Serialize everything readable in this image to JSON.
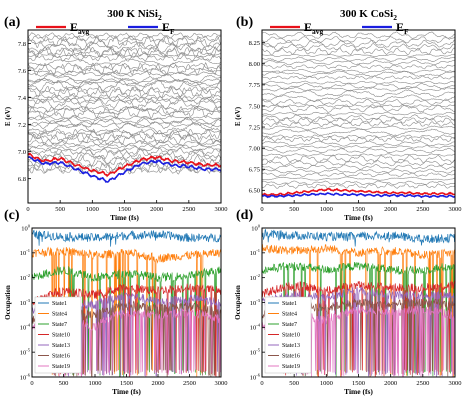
{
  "chart_data": [
    {
      "panel": "a",
      "type": "line",
      "title": "300 K NiSi",
      "title_sub": "2",
      "legend": [
        {
          "label": "E",
          "sub": "avg",
          "color": "#e8111a"
        },
        {
          "label": "E",
          "sub": "F",
          "color": "#1a1ee0"
        }
      ],
      "xlabel": "Time (fs)",
      "ylabel": "E (eV)",
      "xlim": [
        0,
        3000
      ],
      "ylim": [
        6.62,
        7.9
      ],
      "xticks": [
        0,
        500,
        1000,
        1500,
        2000,
        2500,
        3000
      ],
      "yticks": [
        6.8,
        7.0,
        7.2,
        7.4,
        7.6,
        7.8
      ],
      "ytick_labels": [
        "6.8",
        "7.0",
        "7.2",
        "7.4",
        "7.6",
        "7.8"
      ],
      "gray_states": {
        "count": 46,
        "low": 6.86,
        "high": 7.86,
        "color": "#8c8c8c"
      },
      "series": [
        {
          "name": "Eavg",
          "color": "#e8111a",
          "x": [
            0,
            250,
            500,
            750,
            1000,
            1250,
            1500,
            1750,
            2000,
            2250,
            2500,
            2750,
            3000
          ],
          "y": [
            6.98,
            6.93,
            6.95,
            6.9,
            6.86,
            6.83,
            6.89,
            6.94,
            6.96,
            6.93,
            6.92,
            6.9,
            6.9
          ]
        },
        {
          "name": "EF",
          "color": "#1a1ee0",
          "x": [
            0,
            250,
            500,
            750,
            1000,
            1250,
            1500,
            1750,
            2000,
            2250,
            2500,
            2750,
            3000
          ],
          "y": [
            6.96,
            6.91,
            6.92,
            6.87,
            6.82,
            6.78,
            6.85,
            6.91,
            6.93,
            6.9,
            6.89,
            6.87,
            6.87
          ]
        }
      ]
    },
    {
      "panel": "b",
      "type": "line",
      "title": "300 K CoSi",
      "title_sub": "2",
      "legend": [
        {
          "label": "E",
          "sub": "avg",
          "color": "#e8111a"
        },
        {
          "label": "E",
          "sub": "F",
          "color": "#1a1ee0"
        }
      ],
      "xlabel": "Time (fs)",
      "ylabel": "E (eV)",
      "xlim": [
        0,
        3000
      ],
      "ylim": [
        6.35,
        8.4
      ],
      "xticks": [
        0,
        500,
        1000,
        1500,
        2000,
        2500,
        3000
      ],
      "yticks": [
        6.5,
        6.75,
        7.0,
        7.25,
        7.5,
        7.75,
        8.0,
        8.25
      ],
      "ytick_labels": [
        "6.50",
        "6.75",
        "7.00",
        "7.25",
        "7.50",
        "7.75",
        "8.00",
        "8.25"
      ],
      "gray_states": {
        "count": 40,
        "low": 6.55,
        "high": 8.33,
        "color": "#8c8c8c"
      },
      "series": [
        {
          "name": "Eavg",
          "color": "#e8111a",
          "x": [
            0,
            250,
            500,
            750,
            1000,
            1250,
            1500,
            1750,
            2000,
            2250,
            2500,
            2750,
            3000
          ],
          "y": [
            6.45,
            6.45,
            6.47,
            6.49,
            6.51,
            6.5,
            6.49,
            6.48,
            6.47,
            6.47,
            6.46,
            6.46,
            6.46
          ]
        },
        {
          "name": "EF",
          "color": "#1a1ee0",
          "x": [
            0,
            250,
            500,
            750,
            1000,
            1250,
            1500,
            1750,
            2000,
            2250,
            2500,
            2750,
            3000
          ],
          "y": [
            6.43,
            6.43,
            6.44,
            6.45,
            6.46,
            6.45,
            6.45,
            6.44,
            6.44,
            6.44,
            6.43,
            6.43,
            6.43
          ]
        }
      ]
    },
    {
      "panel": "c",
      "type": "line",
      "yscale": "log",
      "xlabel": "Time (fs)",
      "ylabel": "Occupation",
      "xlim": [
        0,
        3000
      ],
      "ylim": [
        1e-06,
        1
      ],
      "xticks": [
        0,
        500,
        1000,
        1500,
        2000,
        2500,
        3000
      ],
      "ytick_exps": [
        0,
        -1,
        -2,
        -3,
        -4,
        -5,
        -6
      ],
      "legend_entries": [
        "State1",
        "State4",
        "State7",
        "State10",
        "State13",
        "State16",
        "State19"
      ],
      "colors": [
        "#1f77b4",
        "#ff7f0e",
        "#2ca02c",
        "#d62728",
        "#9467bd",
        "#8c564b",
        "#e377c2"
      ],
      "series": [
        {
          "name": "State1",
          "x": [
            0,
            500,
            1000,
            1500,
            2000,
            2500,
            3000
          ],
          "y": [
            0.55,
            0.45,
            0.4,
            0.5,
            0.55,
            0.4,
            0.4
          ]
        },
        {
          "name": "State4",
          "x": [
            0,
            500,
            1000,
            1500,
            2000,
            2500,
            3000
          ],
          "y": [
            0.1,
            0.12,
            0.08,
            0.1,
            0.06,
            0.08,
            0.1
          ]
        },
        {
          "name": "State7",
          "x": [
            0,
            500,
            1000,
            1500,
            2000,
            2500,
            3000
          ],
          "y": [
            0.01,
            0.02,
            0.01,
            0.015,
            0.01,
            0.012,
            0.02
          ]
        },
        {
          "name": "State10",
          "x": [
            0,
            500,
            1000,
            1500,
            2000,
            2500,
            3000
          ],
          "y": [
            0.001,
            0.003,
            0.002,
            0.004,
            0.003,
            0.004,
            0.003
          ]
        },
        {
          "name": "State13",
          "x": [
            0,
            500,
            1000,
            1500,
            2000,
            2500,
            3000
          ],
          "y": [
            0.0005,
            0.001,
            0.0008,
            0.002,
            0.001,
            0.0015,
            0.001
          ]
        },
        {
          "name": "State16",
          "x": [
            0,
            500,
            1000,
            1500,
            2000,
            2500,
            3000
          ],
          "y": [
            0.0002,
            0.0004,
            0.0003,
            0.0008,
            0.0006,
            0.0007,
            0.0004
          ]
        },
        {
          "name": "State19",
          "x": [
            0,
            500,
            1000,
            1500,
            2000,
            2500,
            3000
          ],
          "y": [
            0.0001,
            0.0002,
            0.0001,
            0.0004,
            0.0003,
            0.0004,
            0.0002
          ]
        }
      ]
    },
    {
      "panel": "d",
      "type": "line",
      "yscale": "log",
      "xlabel": "Time (fs)",
      "ylabel": "Occupation",
      "xlim": [
        0,
        3000
      ],
      "ylim": [
        1e-06,
        1
      ],
      "xticks": [
        0,
        500,
        1000,
        1500,
        2000,
        2500,
        3000
      ],
      "ytick_exps": [
        0,
        -1,
        -2,
        -3,
        -4,
        -5,
        -6
      ],
      "legend_entries": [
        "State1",
        "State4",
        "State7",
        "State10",
        "State13",
        "State16",
        "State19"
      ],
      "colors": [
        "#1f77b4",
        "#ff7f0e",
        "#2ca02c",
        "#d62728",
        "#9467bd",
        "#8c564b",
        "#e377c2"
      ],
      "series": [
        {
          "name": "State1",
          "x": [
            0,
            500,
            1000,
            1500,
            2000,
            2500,
            3000
          ],
          "y": [
            0.6,
            0.5,
            0.45,
            0.45,
            0.5,
            0.35,
            0.4
          ]
        },
        {
          "name": "State4",
          "x": [
            0,
            500,
            1000,
            1500,
            2000,
            2500,
            3000
          ],
          "y": [
            0.15,
            0.12,
            0.15,
            0.1,
            0.12,
            0.08,
            0.1
          ]
        },
        {
          "name": "State7",
          "x": [
            0,
            500,
            1000,
            1500,
            2000,
            2500,
            3000
          ],
          "y": [
            0.02,
            0.03,
            0.02,
            0.03,
            0.02,
            0.02,
            0.03
          ]
        },
        {
          "name": "State10",
          "x": [
            0,
            500,
            1000,
            1500,
            2000,
            2500,
            3000
          ],
          "y": [
            0.002,
            0.005,
            0.003,
            0.005,
            0.004,
            0.004,
            0.005
          ]
        },
        {
          "name": "State13",
          "x": [
            0,
            500,
            1000,
            1500,
            2000,
            2500,
            3000
          ],
          "y": [
            0.001,
            0.002,
            0.0015,
            0.003,
            0.002,
            0.002,
            0.002
          ]
        },
        {
          "name": "State16",
          "x": [
            0,
            500,
            1000,
            1500,
            2000,
            2500,
            3000
          ],
          "y": [
            0.0003,
            0.0008,
            0.0006,
            0.001,
            0.0008,
            0.001,
            0.0008
          ]
        },
        {
          "name": "State19",
          "x": [
            0,
            500,
            1000,
            1500,
            2000,
            2500,
            3000
          ],
          "y": [
            0.0001,
            0.0003,
            0.0002,
            0.0005,
            0.0004,
            0.0005,
            0.0003
          ]
        }
      ]
    }
  ]
}
